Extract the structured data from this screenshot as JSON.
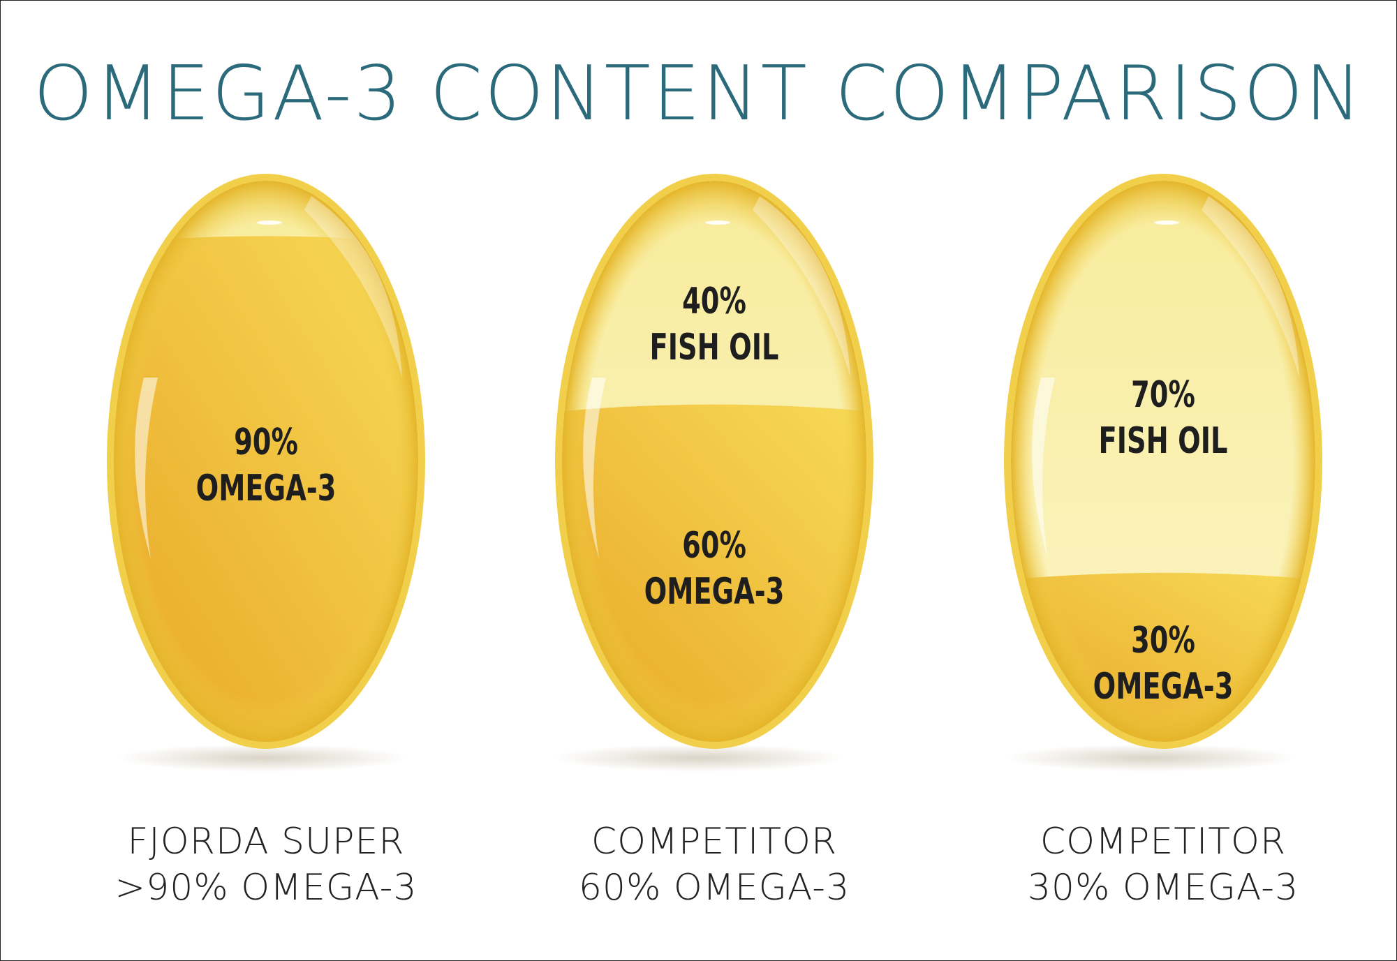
{
  "title": "OMEGA-3 CONTENT COMPARISON",
  "products": [
    {
      "omega_fraction": 0.9,
      "pill": {
        "fish_oil_pct": "",
        "fish_oil_label": "",
        "omega_pct": "90%",
        "omega_label": "OMEGA-3"
      },
      "caption": {
        "line1": "FJORDA SUPER",
        "line2": ">90% OMEGA-3"
      }
    },
    {
      "omega_fraction": 0.6,
      "pill": {
        "fish_oil_pct": "40%",
        "fish_oil_label": "FISH OIL",
        "omega_pct": "60%",
        "omega_label": "OMEGA-3"
      },
      "caption": {
        "line1": "COMPETITOR",
        "line2": "60% OMEGA-3"
      }
    },
    {
      "omega_fraction": 0.3,
      "pill": {
        "fish_oil_pct": "70%",
        "fish_oil_label": "FISH OIL",
        "omega_pct": "30%",
        "omega_label": "OMEGA-3"
      },
      "caption": {
        "line1": "COMPETITOR",
        "line2": "30% OMEGA-3"
      }
    }
  ],
  "colors": {
    "title": "#2a6a7a",
    "capsule_rim": "#f2cf4a",
    "capsule_light": "#fbf5c8",
    "omega_fill_dark": "#e8a524",
    "omega_fill_light": "#f7db58"
  }
}
